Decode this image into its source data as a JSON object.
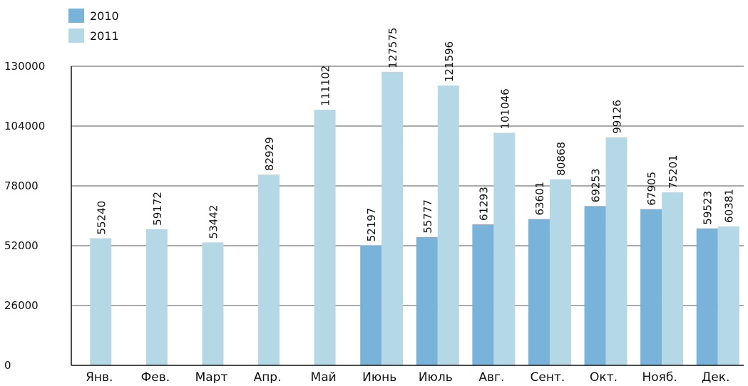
{
  "chart_data": {
    "type": "bar",
    "title": "",
    "xlabel": "",
    "ylabel": "",
    "categories": [
      "Янв.",
      "Фев.",
      "Март",
      "Апр.",
      "Май",
      "Июнь",
      "Июль",
      "Авг.",
      "Сент.",
      "Окт.",
      "Нояб.",
      "Дек."
    ],
    "series": [
      {
        "name": "2010",
        "color": "#7ab3d9",
        "values": [
          null,
          null,
          null,
          null,
          null,
          52197,
          55777,
          61293,
          63601,
          69253,
          67905,
          59523
        ]
      },
      {
        "name": "2011",
        "color": "#b5d8e6",
        "values": [
          55240,
          59172,
          53442,
          82929,
          111102,
          127575,
          121596,
          101046,
          80868,
          99126,
          75201,
          60381
        ]
      }
    ],
    "ylim": [
      0,
      130000
    ],
    "yticks": [
      0,
      26000,
      52000,
      78000,
      104000,
      130000
    ],
    "ytick_labels": [
      "0",
      "26000",
      "52000",
      "78000",
      "104000",
      "130000"
    ],
    "grid": true,
    "legend_position": "top-left",
    "data_labels": "vertical, above bars"
  }
}
